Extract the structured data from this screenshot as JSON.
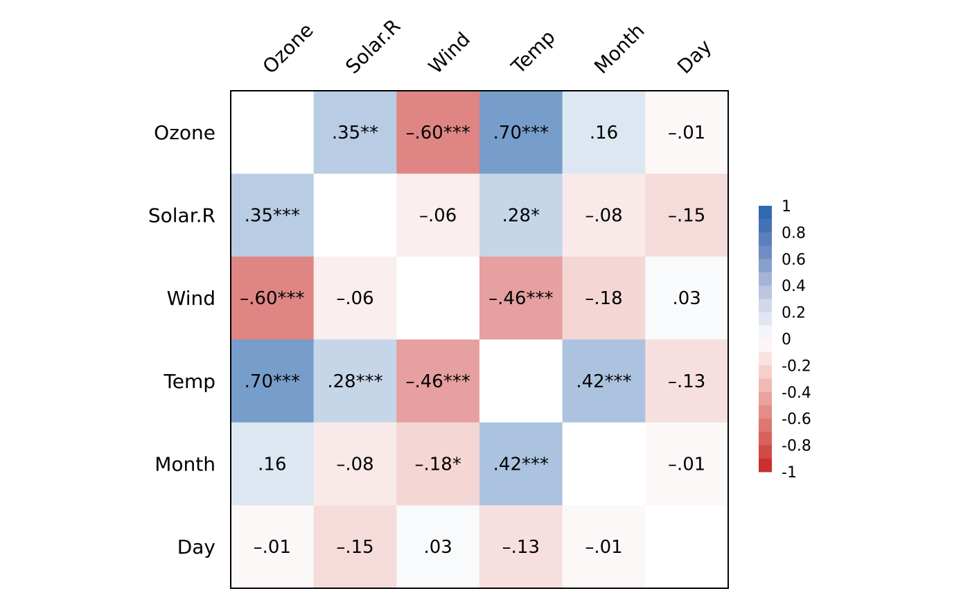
{
  "chart_data": {
    "type": "heatmap",
    "variables": [
      "Ozone",
      "Solar.R",
      "Wind",
      "Temp",
      "Month",
      "Day"
    ],
    "values": [
      [
        null,
        0.35,
        -0.6,
        0.7,
        0.16,
        -0.01
      ],
      [
        0.35,
        null,
        -0.06,
        0.28,
        -0.08,
        -0.15
      ],
      [
        -0.6,
        -0.06,
        null,
        -0.46,
        -0.18,
        0.03
      ],
      [
        0.7,
        0.28,
        -0.46,
        null,
        0.42,
        -0.13
      ],
      [
        0.16,
        -0.08,
        -0.18,
        0.42,
        null,
        -0.01
      ],
      [
        -0.01,
        -0.15,
        0.03,
        -0.13,
        -0.01,
        null
      ]
    ],
    "cell_labels": [
      [
        "",
        ".35**",
        "–.60***",
        ".70***",
        ".16",
        "–.01"
      ],
      [
        ".35***",
        "",
        "–.06",
        ".28*",
        "–.08",
        "–.15"
      ],
      [
        "–.60***",
        "–.06",
        "",
        "–.46***",
        "–.18",
        ".03"
      ],
      [
        ".70***",
        ".28***",
        "–.46***",
        "",
        ".42***",
        "–.13"
      ],
      [
        ".16",
        "–.08",
        "–.18*",
        ".42***",
        "",
        "–.01"
      ],
      [
        "–.01",
        "–.15",
        ".03",
        "–.13",
        "–.01",
        ""
      ]
    ],
    "color_range": [
      -1,
      1
    ],
    "legend": {
      "position": "right",
      "ticks": [
        "1",
        "0.8",
        "0.6",
        "0.4",
        "0.2",
        "0",
        "-0.2",
        "-0.4",
        "-0.6",
        "-0.8",
        "-1"
      ],
      "bins": [
        "#2f6ab0",
        "#4471b4",
        "#5a7fbc",
        "#6f8dc3",
        "#889fcb",
        "#a4b4d8",
        "#bcc6e1",
        "#d0d8ea",
        "#e2e6f2",
        "#f3f5fa",
        "#fff4f4",
        "#fbe2e0",
        "#f6cfcb",
        "#f0bab4",
        "#e9a29c",
        "#e38d86",
        "#dd7770",
        "#d6625b",
        "#cf4b45",
        "#c9302e"
      ]
    },
    "colors": {
      "positive": "#2f6ab0",
      "negative": "#c9302e",
      "zero": "#ffffff",
      "diagonal": "#ffffff",
      "frame": "#000000"
    }
  }
}
